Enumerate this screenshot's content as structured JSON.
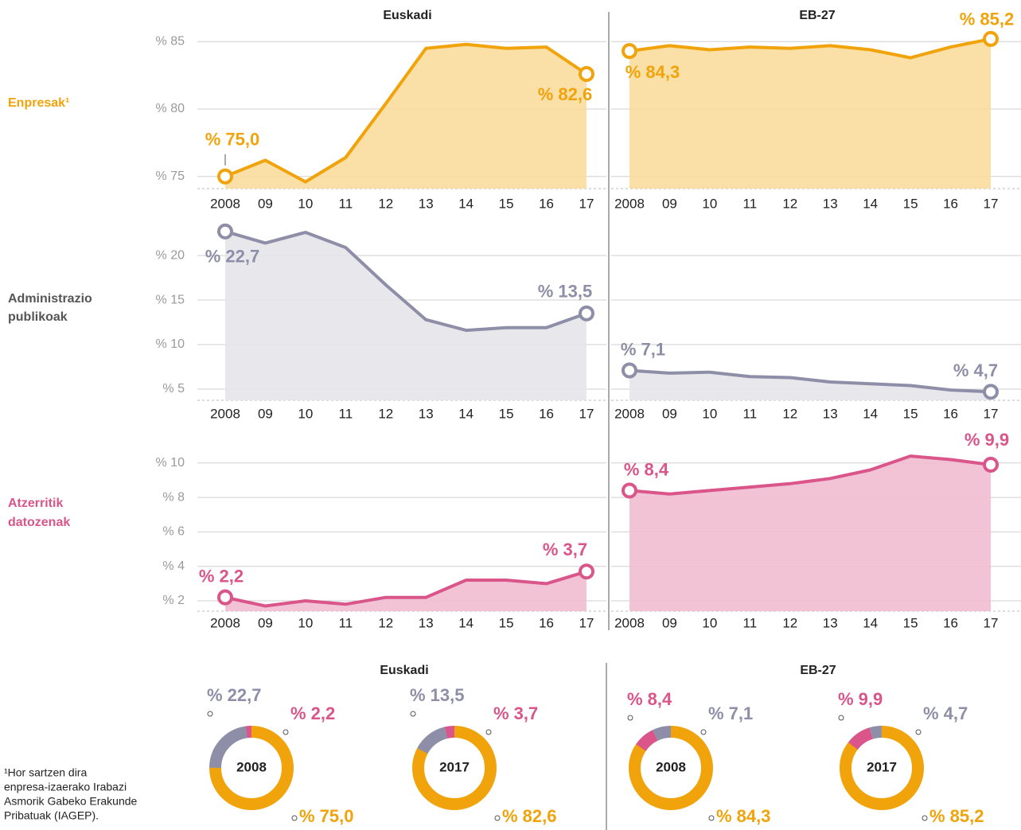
{
  "column_titles": [
    "Euskadi",
    "EB-27"
  ],
  "row_labels": [
    [
      "Enpresak¹"
    ],
    [
      "Administrazio",
      "publikoak"
    ],
    [
      "Atzerritik",
      "datozenak"
    ]
  ],
  "donut_titles": [
    "Euskadi",
    "EB-27"
  ],
  "footnote": [
    "¹Hor sartzen dira",
    "enpresa-izaerako Irabazi",
    "Asmorik Gabeko Erakunde",
    "Pribatuak (IAGEP)."
  ],
  "chart_data": [
    {
      "type": "area",
      "color": "#f0a30a",
      "fill": "#f9dc9c",
      "categories": [
        "2008",
        "09",
        "10",
        "11",
        "12",
        "13",
        "14",
        "15",
        "16",
        "17"
      ],
      "values": [
        75.0,
        76.2,
        74.6,
        76.4,
        80.4,
        84.5,
        84.8,
        84.5,
        84.6,
        82.6
      ],
      "value_labels": [
        "% 75,0",
        null,
        null,
        null,
        null,
        null,
        null,
        null,
        null,
        "% 82,6"
      ],
      "ylim": [
        74.1,
        87.2
      ],
      "yticks": [
        {
          "value": 75,
          "label": "% 75"
        },
        {
          "value": 80,
          "label": "% 80"
        },
        {
          "value": 85,
          "label": "% 85"
        }
      ]
    },
    {
      "type": "area",
      "color": "#f0a30a",
      "fill": "#f9dc9c",
      "categories": [
        "2008",
        "09",
        "10",
        "11",
        "12",
        "13",
        "14",
        "15",
        "16",
        "17"
      ],
      "values": [
        84.3,
        84.7,
        84.4,
        84.6,
        84.5,
        84.7,
        84.4,
        83.8,
        84.6,
        85.2
      ],
      "value_labels": [
        "% 84,3",
        null,
        null,
        null,
        null,
        null,
        null,
        null,
        null,
        "% 85,2"
      ],
      "ylim": [
        74.1,
        87.2
      ],
      "yticks": [
        75,
        80,
        85
      ]
    },
    {
      "type": "area",
      "color": "#8e8ea8",
      "fill": "#e4e4ea",
      "categories": [
        "2008",
        "09",
        "10",
        "11",
        "12",
        "13",
        "14",
        "15",
        "16",
        "17"
      ],
      "values": [
        22.7,
        21.4,
        22.6,
        20.9,
        16.7,
        12.8,
        11.6,
        11.9,
        11.9,
        13.5
      ],
      "value_labels": [
        "% 22,7",
        null,
        null,
        null,
        null,
        null,
        null,
        null,
        null,
        "% 13,5"
      ],
      "ylim": [
        3.75,
        23.4
      ],
      "yticks": [
        {
          "value": 5,
          "label": "% 5"
        },
        {
          "value": 10,
          "label": "% 10"
        },
        {
          "value": 15,
          "label": "% 15"
        },
        {
          "value": 20,
          "label": "% 20"
        }
      ]
    },
    {
      "type": "area",
      "color": "#8e8ea8",
      "fill": "#e4e4ea",
      "categories": [
        "2008",
        "09",
        "10",
        "11",
        "12",
        "13",
        "14",
        "15",
        "16",
        "17"
      ],
      "values": [
        7.1,
        6.8,
        6.9,
        6.4,
        6.3,
        5.8,
        5.6,
        5.4,
        4.9,
        4.7
      ],
      "value_labels": [
        "% 7,1",
        null,
        null,
        null,
        null,
        null,
        null,
        null,
        null,
        "% 4,7"
      ],
      "ylim": [
        3.75,
        23.4
      ],
      "yticks": [
        5,
        10,
        15,
        20
      ]
    },
    {
      "type": "area",
      "color": "#d9558a",
      "fill": "#f0bdd0",
      "categories": [
        "2008",
        "09",
        "10",
        "11",
        "12",
        "13",
        "14",
        "15",
        "16",
        "17"
      ],
      "values": [
        2.2,
        1.7,
        2.0,
        1.8,
        2.2,
        2.2,
        3.2,
        3.2,
        3.0,
        3.7
      ],
      "value_labels": [
        "% 2,2",
        null,
        null,
        null,
        null,
        null,
        null,
        null,
        null,
        "% 3,7"
      ],
      "ylim": [
        1.4,
        11.7
      ],
      "yticks": [
        {
          "value": 2,
          "label": "% 2"
        },
        {
          "value": 4,
          "label": "% 4"
        },
        {
          "value": 6,
          "label": "% 6"
        },
        {
          "value": 8,
          "label": "% 8"
        },
        {
          "value": 10,
          "label": "% 10"
        }
      ]
    },
    {
      "type": "area",
      "color": "#d9558a",
      "fill": "#f0bdd0",
      "categories": [
        "2008",
        "09",
        "10",
        "11",
        "12",
        "13",
        "14",
        "15",
        "16",
        "17"
      ],
      "values": [
        8.4,
        8.2,
        8.4,
        8.6,
        8.8,
        9.1,
        9.6,
        10.4,
        10.2,
        9.9
      ],
      "value_labels": [
        "% 8,4",
        null,
        null,
        null,
        null,
        null,
        null,
        null,
        null,
        "% 9,9"
      ],
      "ylim": [
        1.4,
        11.7
      ],
      "yticks": [
        2,
        4,
        6,
        8,
        10
      ]
    },
    {
      "type": "donut",
      "center_label": "2008",
      "values": [
        75.0,
        22.7,
        2.2
      ],
      "value_labels": [
        "% 75,0",
        "% 22,7",
        "% 2,2"
      ],
      "colors": [
        "#f0a30a",
        "#8e8ea8",
        "#d9558a"
      ]
    },
    {
      "type": "donut",
      "center_label": "2017",
      "values": [
        82.6,
        13.5,
        3.7
      ],
      "value_labels": [
        "% 82,6",
        "% 13,5",
        "% 3,7"
      ],
      "colors": [
        "#f0a30a",
        "#8e8ea8",
        "#d9558a"
      ]
    },
    {
      "type": "donut",
      "center_label": "2008",
      "values": [
        84.3,
        8.4,
        7.1
      ],
      "value_labels": [
        "% 84,3",
        "% 8,4",
        "% 7,1"
      ],
      "colors": [
        "#f0a30a",
        "#d9558a",
        "#8e8ea8"
      ]
    },
    {
      "type": "donut",
      "center_label": "2017",
      "values": [
        85.2,
        9.9,
        4.7
      ],
      "value_labels": [
        "% 85,2",
        "% 9,9",
        "% 4,7"
      ],
      "colors": [
        "#f0a30a",
        "#d9558a",
        "#8e8ea8"
      ]
    }
  ]
}
